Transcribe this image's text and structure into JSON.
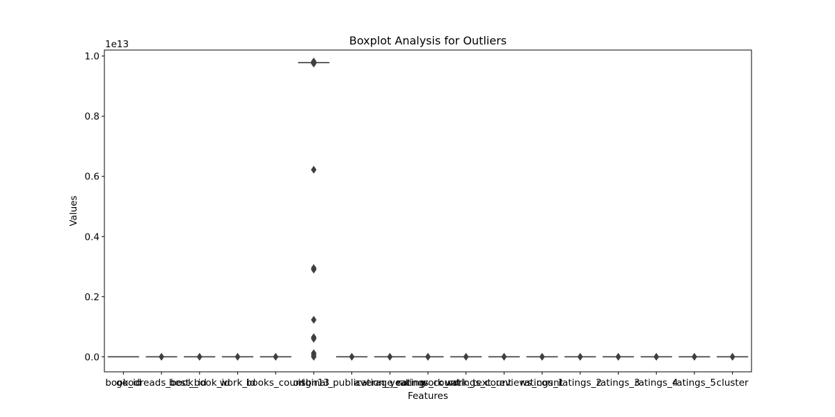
{
  "chart_data": {
    "type": "boxplot",
    "title": "Boxplot Analysis for Outliers",
    "xlabel": "Features",
    "ylabel": "Values",
    "y_offset_text": "1e13",
    "y_scale_factor": 10000000000000.0,
    "ylim": [
      -0.05,
      1.02
    ],
    "yticks": [
      0.0,
      0.2,
      0.4,
      0.6,
      0.8,
      1.0
    ],
    "ytick_labels": [
      "0.0",
      "0.2",
      "0.4",
      "0.6",
      "0.8",
      "1.0"
    ],
    "grid": false,
    "legend": "none",
    "categories": [
      "book_id",
      "goodreads_book_id",
      "best_book_id",
      "work_id",
      "books_count",
      "isbn13",
      "original_publication_year",
      "average_rating",
      "ratings_count",
      "work_ratings_count",
      "work_text_reviews_count",
      "ratings_1",
      "ratings_2",
      "ratings_3",
      "ratings_4",
      "ratings_5",
      "cluster"
    ],
    "boxes": [
      {
        "q1": 0,
        "median": 0,
        "q3": 0,
        "whisker_low": 0,
        "whisker_high": 0,
        "outliers": []
      },
      {
        "q1": 0,
        "median": 0,
        "q3": 0,
        "whisker_low": 0,
        "whisker_high": 0,
        "outliers": [
          0.0
        ]
      },
      {
        "q1": 0,
        "median": 0,
        "q3": 0,
        "whisker_low": 0,
        "whisker_high": 0,
        "outliers": [
          0.0
        ]
      },
      {
        "q1": 0,
        "median": 0,
        "q3": 0,
        "whisker_low": 0,
        "whisker_high": 0,
        "outliers": [
          0.0
        ]
      },
      {
        "q1": 0,
        "median": 0,
        "q3": 0,
        "whisker_low": 0,
        "whisker_high": 0,
        "outliers": [
          0.0
        ]
      },
      {
        "q1": 0.978,
        "median": 0.978,
        "q3": 0.978,
        "whisker_low": 0.978,
        "whisker_high": 0.978,
        "outliers": [
          0.982,
          0.975,
          0.622,
          0.295,
          0.29,
          0.123,
          0.065,
          0.06,
          0.012,
          0.006,
          0.0
        ]
      },
      {
        "q1": 0,
        "median": 0,
        "q3": 0,
        "whisker_low": 0,
        "whisker_high": 0,
        "outliers": [
          0.0
        ]
      },
      {
        "q1": 0,
        "median": 0,
        "q3": 0,
        "whisker_low": 0,
        "whisker_high": 0,
        "outliers": [
          0.0
        ]
      },
      {
        "q1": 0,
        "median": 0,
        "q3": 0,
        "whisker_low": 0,
        "whisker_high": 0,
        "outliers": [
          0.0
        ]
      },
      {
        "q1": 0,
        "median": 0,
        "q3": 0,
        "whisker_low": 0,
        "whisker_high": 0,
        "outliers": [
          0.0
        ]
      },
      {
        "q1": 0,
        "median": 0,
        "q3": 0,
        "whisker_low": 0,
        "whisker_high": 0,
        "outliers": [
          0.0
        ]
      },
      {
        "q1": 0,
        "median": 0,
        "q3": 0,
        "whisker_low": 0,
        "whisker_high": 0,
        "outliers": [
          0.0
        ]
      },
      {
        "q1": 0,
        "median": 0,
        "q3": 0,
        "whisker_low": 0,
        "whisker_high": 0,
        "outliers": [
          0.0
        ]
      },
      {
        "q1": 0,
        "median": 0,
        "q3": 0,
        "whisker_low": 0,
        "whisker_high": 0,
        "outliers": [
          0.0
        ]
      },
      {
        "q1": 0,
        "median": 0,
        "q3": 0,
        "whisker_low": 0,
        "whisker_high": 0,
        "outliers": [
          0.0
        ]
      },
      {
        "q1": 0,
        "median": 0,
        "q3": 0,
        "whisker_low": 0,
        "whisker_high": 0,
        "outliers": [
          0.0
        ]
      },
      {
        "q1": 0,
        "median": 0,
        "q3": 0,
        "whisker_low": 0,
        "whisker_high": 0,
        "outliers": [
          0.0
        ]
      }
    ],
    "colors": {
      "box_edge": "#3f3f3f",
      "outlier_fill": "#3f3f3f",
      "axis": "#000000"
    }
  }
}
